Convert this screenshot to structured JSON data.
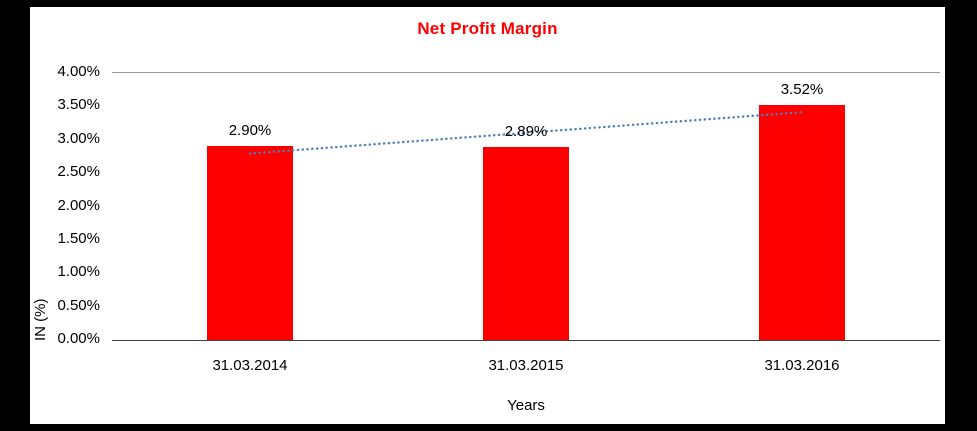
{
  "chart_data": {
    "type": "bar",
    "title": "Net Profit Margin",
    "categories": [
      "31.03.2014",
      "31.03.2015",
      "31.03.2016"
    ],
    "values": [
      2.9,
      2.89,
      3.52
    ],
    "labels": [
      "2.90%",
      "2.89%",
      "3.52%"
    ],
    "xlabel": "Years",
    "ylabel": "IN (%)",
    "ylim": [
      0,
      4
    ],
    "ytick_step": 0.5,
    "ytick_labels": [
      "0.00%",
      "0.50%",
      "1.00%",
      "1.50%",
      "2.00%",
      "2.50%",
      "3.00%",
      "3.50%",
      "4.00%"
    ],
    "bar_color": "#FF0000",
    "title_color": "#FF0000",
    "trend_color": "#4E7DBA",
    "legend": "none",
    "grid": "top-border-only",
    "trendline": "linear-dotted"
  }
}
